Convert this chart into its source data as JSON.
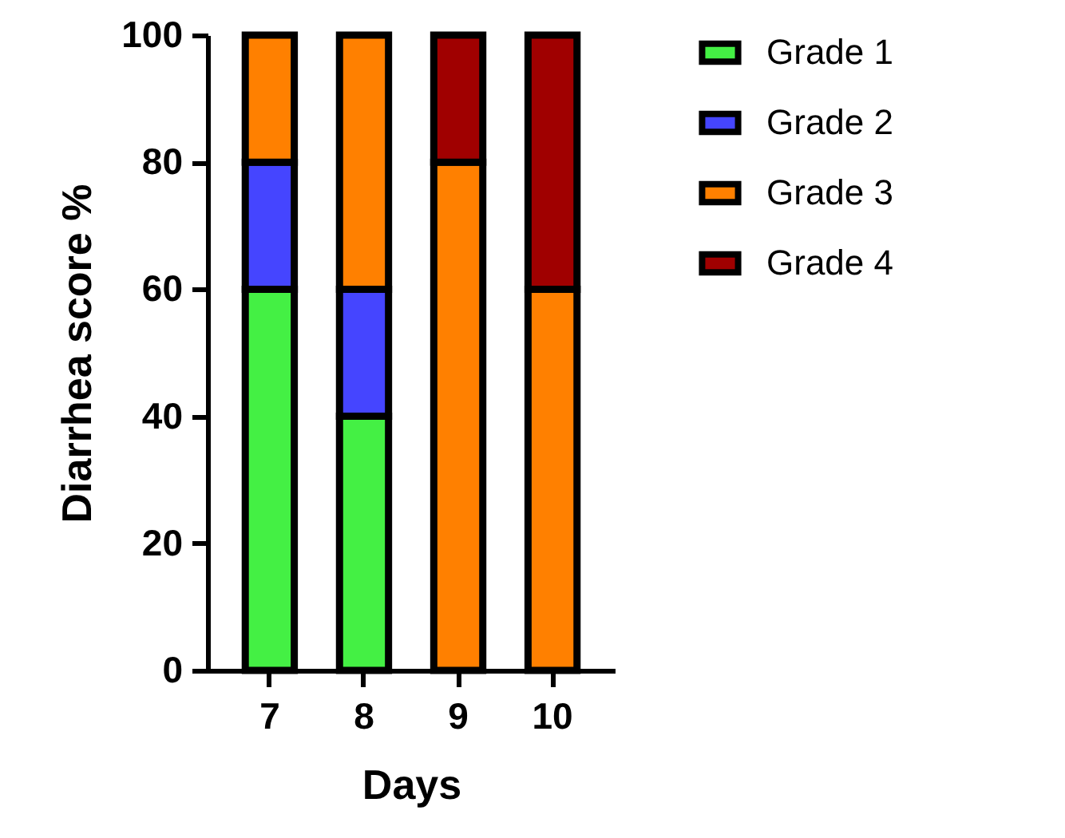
{
  "chart_data": {
    "type": "bar",
    "xlabel": "Days",
    "ylabel": "Diarrhea score %",
    "categories": [
      "7",
      "8",
      "9",
      "10"
    ],
    "series": [
      {
        "name": "Grade 1",
        "color": "#44f044",
        "values": [
          60,
          40,
          0,
          0
        ]
      },
      {
        "name": "Grade 2",
        "color": "#4545ff",
        "values": [
          20,
          20,
          0,
          0
        ]
      },
      {
        "name": "Grade 3",
        "color": "#ff8000",
        "values": [
          20,
          40,
          80,
          60
        ]
      },
      {
        "name": "Grade 4",
        "color": "#a00000",
        "values": [
          0,
          0,
          20,
          40
        ]
      }
    ],
    "stacked": true,
    "ylim": [
      0,
      100
    ],
    "yticks": [
      0,
      20,
      40,
      60,
      80,
      100
    ],
    "grid": false,
    "legend": "top right"
  }
}
